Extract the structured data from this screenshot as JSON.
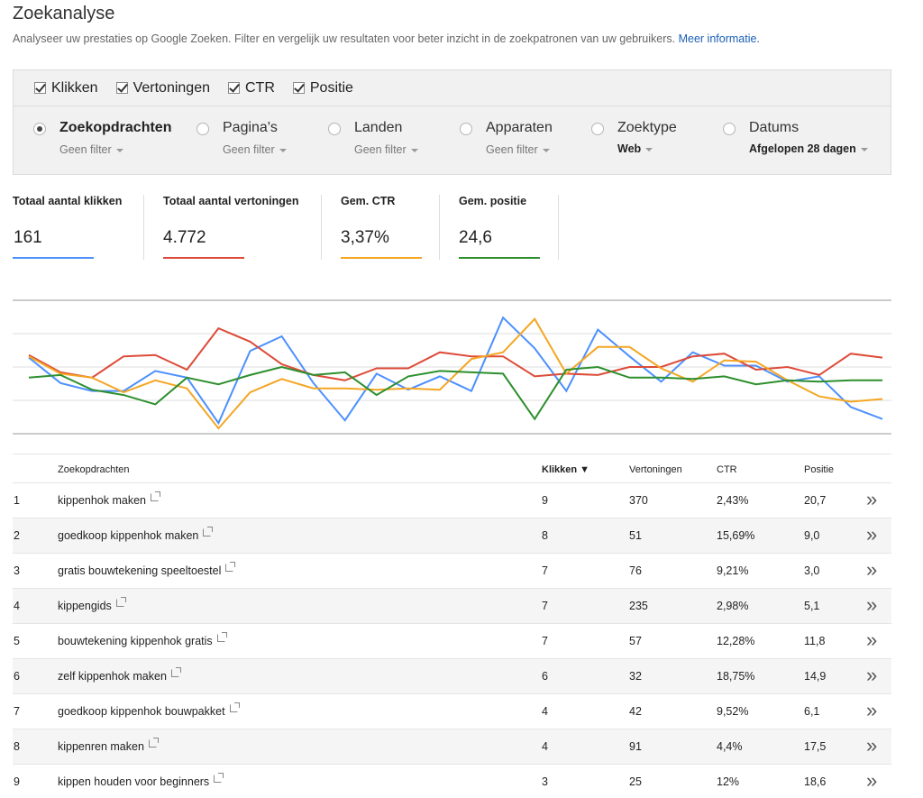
{
  "page": {
    "title": "Zoekanalyse",
    "description": "Analyseer uw prestaties op Google Zoeken. Filter en vergelijk uw resultaten voor beter inzicht in de zoekpatronen van uw gebruikers.",
    "more_link": "Meer informatie."
  },
  "metrics": [
    {
      "label": "Klikken",
      "checked": true
    },
    {
      "label": "Vertoningen",
      "checked": true
    },
    {
      "label": "CTR",
      "checked": true
    },
    {
      "label": "Positie",
      "checked": true
    }
  ],
  "dimensions": [
    {
      "label": "Zoekopdrachten",
      "sub": "Geen filter",
      "selected": true
    },
    {
      "label": "Pagina's",
      "sub": "Geen filter",
      "selected": false
    },
    {
      "label": "Landen",
      "sub": "Geen filter",
      "selected": false
    },
    {
      "label": "Apparaten",
      "sub": "Geen filter",
      "selected": false
    },
    {
      "label": "Zoektype",
      "sub": "Web",
      "selected": false
    },
    {
      "label": "Datums",
      "sub": "Afgelopen 28 dagen",
      "selected": false
    }
  ],
  "summary": [
    {
      "label": "Totaal aantal klikken",
      "value": "161",
      "color": "#4d90fe"
    },
    {
      "label": "Totaal aantal vertoningen",
      "value": "4.772",
      "color": "#dd4b39"
    },
    {
      "label": "Gem. CTR",
      "value": "3,37%",
      "color": "#f4a623"
    },
    {
      "label": "Gem. positie",
      "value": "24,6",
      "color": "#2d8f2d"
    }
  ],
  "chart_data": {
    "type": "line",
    "ylim": [
      0,
      100
    ],
    "grid": true,
    "series": [
      {
        "color": "#4d90fe",
        "values": [
          57,
          38,
          32,
          32,
          47,
          42,
          8,
          62,
          73,
          38,
          10,
          45,
          33,
          43,
          32,
          87,
          64,
          32,
          78,
          58,
          39,
          61,
          51,
          51,
          39,
          43,
          20,
          11
        ]
      },
      {
        "color": "#dd4b39",
        "values": [
          59,
          46,
          42,
          58,
          59,
          48,
          79,
          69,
          52,
          44,
          40,
          49,
          49,
          61,
          58,
          58,
          43,
          45,
          44,
          50,
          50,
          58,
          60,
          48,
          50,
          44,
          60,
          57
        ]
      },
      {
        "color": "#f4a623",
        "values": [
          58,
          45,
          42,
          31,
          40,
          34,
          4,
          31,
          41,
          34,
          34,
          33,
          34,
          33,
          56,
          61,
          86,
          45,
          65,
          65,
          49,
          39,
          55,
          54,
          40,
          28,
          24,
          26
        ]
      },
      {
        "color": "#2d8f2d",
        "values": [
          42,
          44,
          33,
          29,
          22,
          42,
          37,
          44,
          50,
          44,
          46,
          29,
          43,
          47,
          46,
          45,
          11,
          48,
          50,
          42,
          42,
          41,
          43,
          37,
          40,
          39,
          40,
          40
        ]
      }
    ]
  },
  "table": {
    "headers": {
      "query": "Zoekopdrachten",
      "clicks": "Klikken ▼",
      "impressions": "Vertoningen",
      "ctr": "CTR",
      "position": "Positie"
    },
    "rows": [
      {
        "num": "1",
        "query": "kippenhok maken",
        "clicks": "9",
        "impressions": "370",
        "ctr": "2,43%",
        "position": "20,7"
      },
      {
        "num": "2",
        "query": "goedkoop kippenhok maken",
        "clicks": "8",
        "impressions": "51",
        "ctr": "15,69%",
        "position": "9,0"
      },
      {
        "num": "3",
        "query": "gratis bouwtekening speeltoestel",
        "clicks": "7",
        "impressions": "76",
        "ctr": "9,21%",
        "position": "3,0"
      },
      {
        "num": "4",
        "query": "kippengids",
        "clicks": "7",
        "impressions": "235",
        "ctr": "2,98%",
        "position": "5,1"
      },
      {
        "num": "5",
        "query": "bouwtekening kippenhok gratis",
        "clicks": "7",
        "impressions": "57",
        "ctr": "12,28%",
        "position": "11,8"
      },
      {
        "num": "6",
        "query": "zelf kippenhok maken",
        "clicks": "6",
        "impressions": "32",
        "ctr": "18,75%",
        "position": "14,9"
      },
      {
        "num": "7",
        "query": "goedkoop kippenhok bouwpakket",
        "clicks": "4",
        "impressions": "42",
        "ctr": "9,52%",
        "position": "6,1"
      },
      {
        "num": "8",
        "query": "kippenren maken",
        "clicks": "4",
        "impressions": "91",
        "ctr": "4,4%",
        "position": "17,5"
      },
      {
        "num": "9",
        "query": "kippen houden voor beginners",
        "clicks": "3",
        "impressions": "25",
        "ctr": "12%",
        "position": "18,6"
      }
    ],
    "row_action_icon": "double-chevron-right-icon"
  }
}
